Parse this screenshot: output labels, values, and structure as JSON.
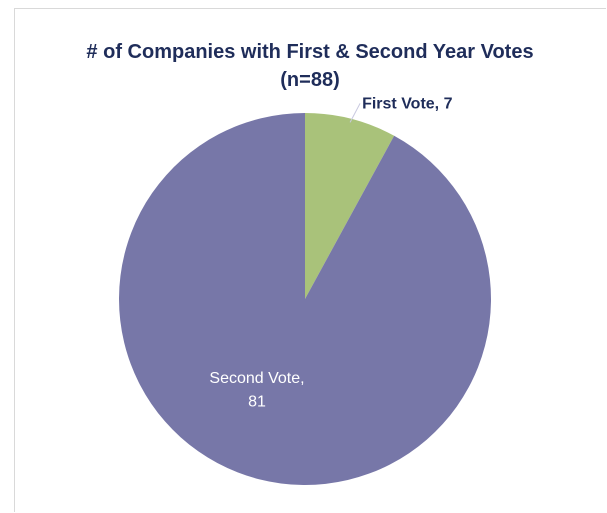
{
  "chart_data": {
    "type": "pie",
    "title_line1": "# of Companies with First & Second Year Votes",
    "title_line2": "(n=88)",
    "categories": [
      "First Vote",
      "Second Vote"
    ],
    "values": [
      7,
      81
    ],
    "labels": [
      {
        "lines": [
          "First Vote, 7"
        ]
      },
      {
        "lines": [
          "Second Vote,",
          "81"
        ]
      }
    ],
    "colors": [
      "#a9c27a",
      "#7777a8"
    ],
    "label_colors": [
      "#1f2d5a",
      "#ffffff"
    ],
    "start_angle_deg": 0,
    "direction": "clockwise",
    "legend": "none"
  }
}
